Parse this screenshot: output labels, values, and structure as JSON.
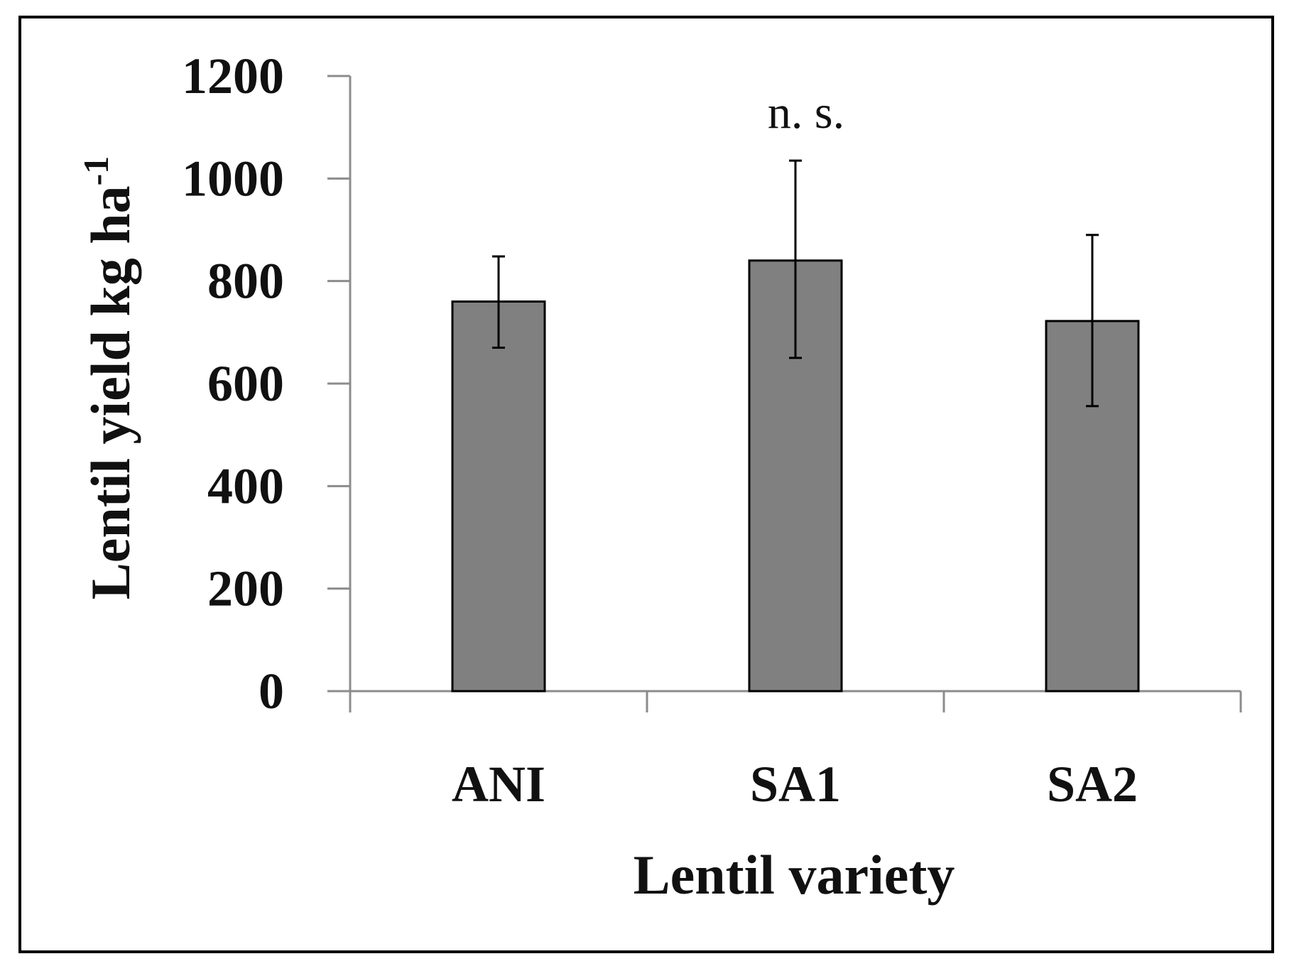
{
  "chart_data": {
    "type": "bar",
    "categories": [
      "ANI",
      "SA1",
      "SA2"
    ],
    "values": [
      760,
      840,
      722
    ],
    "error_upper": [
      848,
      1035,
      890
    ],
    "error_lower": [
      670,
      650,
      556
    ],
    "xlabel": "Lentil variety",
    "ylabel_main": "Lentil yield kg ha",
    "ylabel_sup": "-1",
    "ylim": [
      0,
      1200
    ],
    "yticks": [
      "0",
      "200",
      "400",
      "600",
      "800",
      "1000",
      "1200"
    ],
    "annotation": "n. s.",
    "grid": false,
    "bar_color": "#808080",
    "bar_edge_color": "#000000",
    "axis_color": "#8c8c8c"
  }
}
